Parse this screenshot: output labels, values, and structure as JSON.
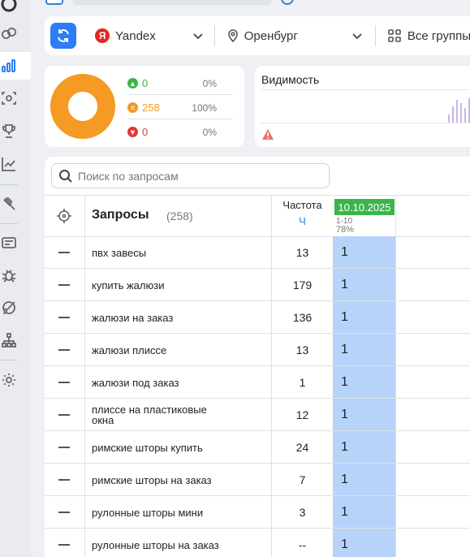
{
  "filter_bar": {
    "search_engine": "Yandex",
    "search_engine_badge": "Я",
    "region": "Оренбург",
    "groups": "Все группы"
  },
  "stats": {
    "up": {
      "count": "0",
      "percent": "0%",
      "color": "#3bb54a"
    },
    "same": {
      "count": "258",
      "percent": "100%",
      "color": "#f59a23"
    },
    "down": {
      "count": "0",
      "percent": "0%",
      "color": "#e03a3a"
    },
    "donut_share_same": 1.0
  },
  "visibility": {
    "title": "Видимость"
  },
  "table": {
    "search_placeholder": "Поиск по запросам",
    "header": {
      "title": "Запросы",
      "count": "(258)",
      "frequency": "Частота",
      "frequency_unit": "Ч",
      "date": "10.10.2025",
      "range": "1-10",
      "visibility_pct": "78%"
    },
    "rows": [
      {
        "query": "пвх завесы",
        "freq": "13",
        "pos": "1"
      },
      {
        "query": "купить жалюзи",
        "freq": "179",
        "pos": "1"
      },
      {
        "query": "жалюзи на заказ",
        "freq": "136",
        "pos": "1"
      },
      {
        "query": "жалюзи плиссе",
        "freq": "13",
        "pos": "1"
      },
      {
        "query": "жалюзи под заказ",
        "freq": "1",
        "pos": "1"
      },
      {
        "query": "плиссе на пластиковые окна",
        "freq": "12",
        "pos": "1"
      },
      {
        "query": "римские шторы купить",
        "freq": "24",
        "pos": "1"
      },
      {
        "query": "римские шторы на заказ",
        "freq": "7",
        "pos": "1"
      },
      {
        "query": "рулонные шторы мини",
        "freq": "3",
        "pos": "1"
      },
      {
        "query": "рулонные шторы на заказ",
        "freq": "--",
        "pos": "1"
      }
    ]
  },
  "colors": {
    "accent": "#2e7cf6",
    "position_cell": "#b7d3fa",
    "date_header": "#3bb54a"
  }
}
